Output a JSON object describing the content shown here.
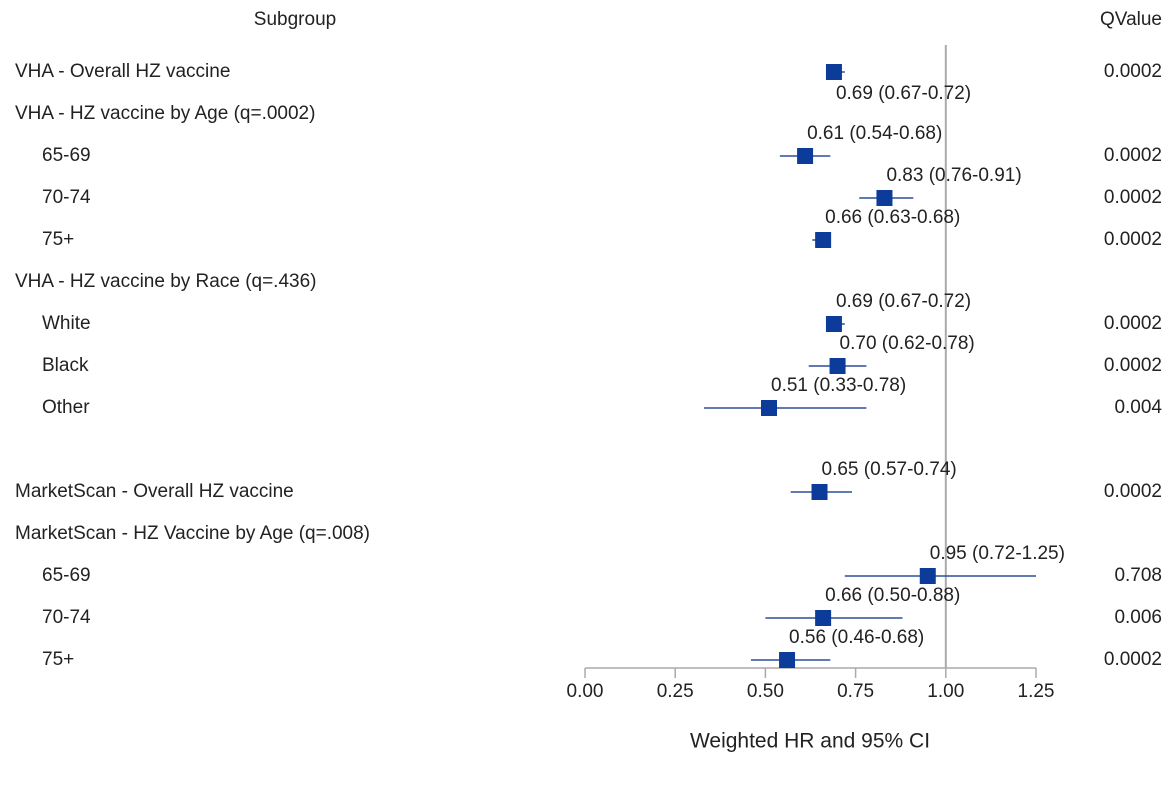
{
  "chart_data": {
    "type": "forest",
    "label_header": "Subgroup",
    "q_header": "QValue",
    "xlabel": "Weighted HR and 95% CI",
    "xlim": [
      0,
      1.25
    ],
    "xticks": [
      {
        "value": 0,
        "label": "0.00"
      },
      {
        "value": 0.25,
        "label": "0.25"
      },
      {
        "value": 0.5,
        "label": "0.50"
      },
      {
        "value": 0.75,
        "label": "0.75"
      },
      {
        "value": 1,
        "label": "1.00"
      },
      {
        "value": 1.25,
        "label": "1.25"
      }
    ],
    "reference": 1,
    "color": "#0d3b9a",
    "rows": [
      {
        "label": "VHA - Overall HZ vaccine",
        "value": 0.69,
        "lower": 0.67,
        "upper": 0.72,
        "value_label": "0.69 (0.67-0.72)",
        "q": 0.0002
      },
      {
        "label": "VHA - HZ vaccine by Age (q=.0002)",
        "rows": [
          {
            "label": "65-69",
            "value": 0.61,
            "lower": 0.54,
            "upper": 0.68,
            "value_label": "0.61 (0.54-0.68)",
            "q": 0.0002
          },
          {
            "label": "70-74",
            "value": 0.83,
            "lower": 0.76,
            "upper": 0.91,
            "value_label": "0.83 (0.76-0.91)",
            "q": 0.0002
          },
          {
            "label": "75+",
            "value": 0.66,
            "lower": 0.63,
            "upper": 0.68,
            "value_label": "0.66 (0.63-0.68)",
            "q": 0.0002
          }
        ]
      },
      {
        "label": "VHA - HZ vaccine by Race (q=.436)",
        "rows": [
          {
            "label": "White",
            "value": 0.69,
            "lower": 0.67,
            "upper": 0.72,
            "value_label": "0.69 (0.67-0.72)",
            "q": 0.0002
          },
          {
            "label": "Black",
            "value": 0.7,
            "lower": 0.62,
            "upper": 0.78,
            "value_label": "0.70 (0.62-0.78)",
            "q": 0.0002
          },
          {
            "label": "Other",
            "value": 0.51,
            "lower": 0.33,
            "upper": 0.78,
            "value_label": "0.51 (0.33-0.78)",
            "q": 0.004
          }
        ]
      },
      null,
      {
        "label": "MarketScan - Overall HZ vaccine",
        "value": 0.65,
        "lower": 0.57,
        "upper": 0.74,
        "value_label": "0.65 (0.57-0.74)",
        "q": 0.0002
      },
      {
        "label": "MarketScan - HZ Vaccine by Age (q=.008)",
        "rows": [
          {
            "label": "65-69",
            "value": 0.95,
            "lower": 0.72,
            "upper": 1.25,
            "value_label": "0.95 (0.72-1.25)",
            "q": 0.708
          },
          {
            "label": "70-74",
            "value": 0.66,
            "lower": 0.5,
            "upper": 0.88,
            "value_label": "0.66 (0.50-0.88)",
            "q": 0.006
          },
          {
            "label": "75+",
            "value": 0.56,
            "lower": 0.46,
            "upper": 0.68,
            "value_label": "0.56 (0.46-0.68)",
            "q": 0.0002
          }
        ]
      }
    ]
  }
}
